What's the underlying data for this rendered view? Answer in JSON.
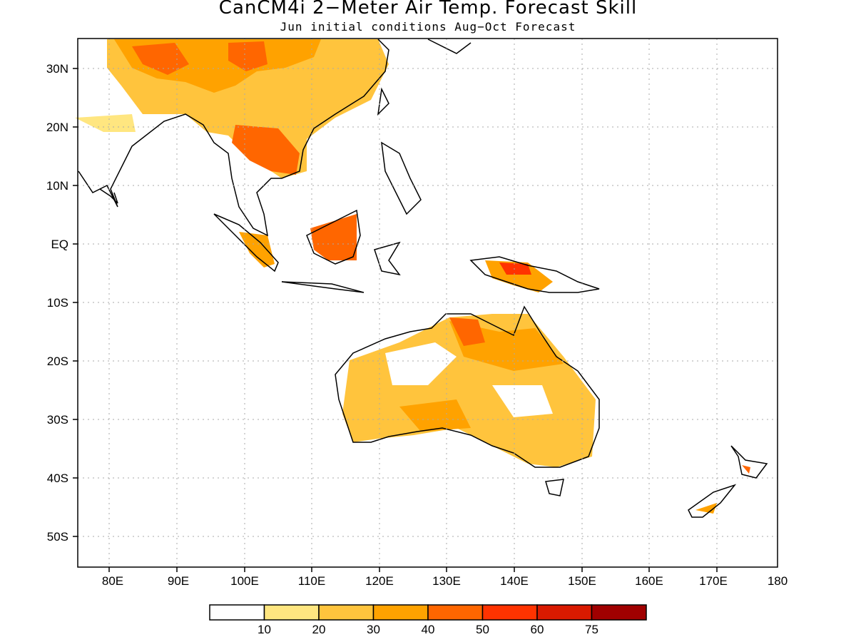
{
  "title": "CanCM4i 2−Meter Air Temp. Forecast Skill",
  "subtitle": "Jun initial conditions  Aug−Oct Forecast",
  "lon_ticks": [
    "80E",
    "90E",
    "100E",
    "110E",
    "120E",
    "130E",
    "140E",
    "150E",
    "160E",
    "170E",
    "180"
  ],
  "lat_ticks": [
    "30N",
    "20N",
    "10N",
    "EQ",
    "10S",
    "20S",
    "30S",
    "40S",
    "50S"
  ],
  "colorbar": {
    "bins": [
      {
        "color": "#ffffff"
      },
      {
        "color": "#ffe680"
      },
      {
        "color": "#ffc43d"
      },
      {
        "color": "#ffa200"
      },
      {
        "color": "#ff6600"
      },
      {
        "color": "#ff3300"
      },
      {
        "color": "#d91a00"
      },
      {
        "color": "#a00000"
      }
    ],
    "labels": [
      "10",
      "20",
      "30",
      "40",
      "50",
      "60",
      "75"
    ]
  },
  "map_extent": {
    "lon": [
      75,
      180
    ],
    "lat": [
      -55,
      35
    ]
  }
}
